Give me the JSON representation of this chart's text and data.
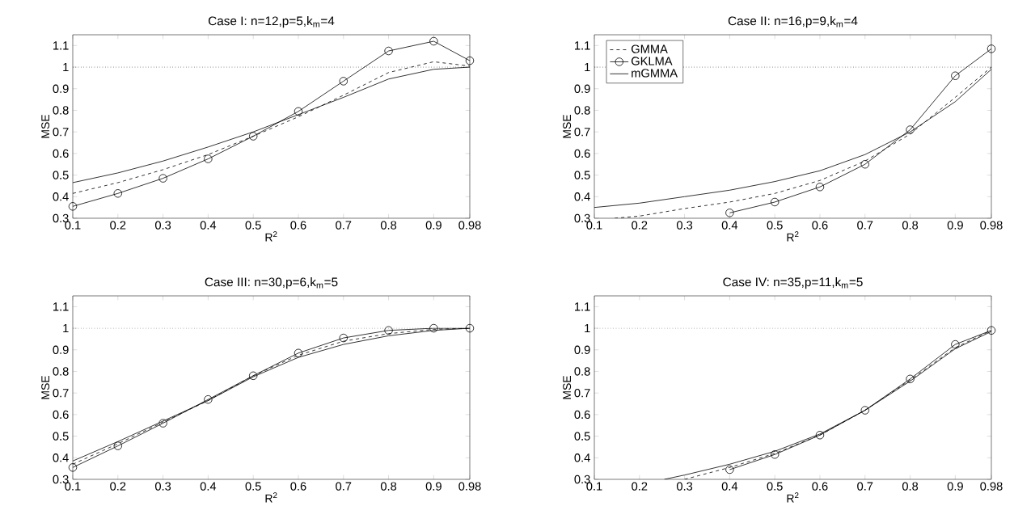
{
  "chart_data": [
    {
      "type": "line",
      "title": "Case I: n=12,p=5,k$_{m}$=4",
      "xlabel": "R$^{2}$",
      "ylabel": "MSE",
      "xlim": [
        0.1,
        0.98
      ],
      "ylim": [
        0.3,
        1.15
      ],
      "xticks": [
        0.1,
        0.2,
        0.3,
        0.4,
        0.5,
        0.6,
        0.7,
        0.8,
        0.9,
        0.98
      ],
      "yticks": [
        0.3,
        0.4,
        0.5,
        0.6,
        0.7,
        0.8,
        0.9,
        1,
        1.1
      ],
      "grid": false,
      "legend": false,
      "ref_lines": [
        {
          "axis": "y",
          "value": 1,
          "color": "#000000",
          "line_style": "dotted"
        }
      ],
      "series": [
        {
          "color": "#000000",
          "line_style": "dashed",
          "marker": "none",
          "x": [
            0.1,
            0.2,
            0.3,
            0.4,
            0.5,
            0.6,
            0.7,
            0.8,
            0.9,
            0.98
          ],
          "values": [
            0.415,
            0.465,
            0.525,
            0.595,
            0.68,
            0.77,
            0.87,
            0.975,
            1.025,
            1.005
          ]
        },
        {
          "color": "#000000",
          "line_style": "solid",
          "marker": "circle",
          "x": [
            0.1,
            0.2,
            0.3,
            0.4,
            0.5,
            0.6,
            0.7,
            0.8,
            0.9,
            0.98
          ],
          "values": [
            0.355,
            0.415,
            0.485,
            0.575,
            0.68,
            0.795,
            0.935,
            1.075,
            1.12,
            1.03
          ]
        },
        {
          "color": "#000000",
          "line_style": "solid",
          "marker": "none",
          "x": [
            0.1,
            0.2,
            0.3,
            0.4,
            0.5,
            0.6,
            0.7,
            0.8,
            0.9,
            0.98
          ],
          "values": [
            0.465,
            0.51,
            0.565,
            0.63,
            0.7,
            0.78,
            0.86,
            0.945,
            0.99,
            1.0
          ]
        }
      ]
    },
    {
      "type": "line",
      "title": "Case II: n=16,p=9,k$_{m}$=4",
      "xlabel": "R$^{2}$",
      "ylabel": "MSE",
      "xlim": [
        0.1,
        0.98
      ],
      "ylim": [
        0.3,
        1.15
      ],
      "xticks": [
        0.1,
        0.2,
        0.3,
        0.4,
        0.5,
        0.6,
        0.7,
        0.8,
        0.9,
        0.98
      ],
      "yticks": [
        0.3,
        0.4,
        0.5,
        0.6,
        0.7,
        0.8,
        0.9,
        1,
        1.1
      ],
      "grid": false,
      "legend": "top left",
      "ref_lines": [
        {
          "axis": "y",
          "value": 1,
          "color": "#000000",
          "line_style": "dotted"
        }
      ],
      "series": [
        {
          "name": "GMMA",
          "color": "#000000",
          "line_style": "dashed",
          "marker": "none",
          "x": [
            0.145,
            0.2,
            0.3,
            0.4,
            0.5,
            0.6,
            0.7,
            0.8,
            0.9,
            0.98
          ],
          "values": [
            0.3,
            0.31,
            0.345,
            0.375,
            0.415,
            0.475,
            0.565,
            0.69,
            0.86,
            1.0
          ]
        },
        {
          "name": "GKLMA",
          "color": "#000000",
          "line_style": "solid",
          "marker": "circle",
          "x": [
            0.4,
            0.5,
            0.6,
            0.7,
            0.8,
            0.9,
            0.98
          ],
          "values": [
            0.325,
            0.375,
            0.445,
            0.55,
            0.71,
            0.96,
            1.085
          ]
        },
        {
          "name": "mGMMA",
          "color": "#000000",
          "line_style": "solid",
          "marker": "none",
          "x": [
            0.1,
            0.2,
            0.3,
            0.4,
            0.5,
            0.6,
            0.7,
            0.8,
            0.9,
            0.98
          ],
          "values": [
            0.35,
            0.37,
            0.4,
            0.43,
            0.47,
            0.52,
            0.595,
            0.7,
            0.84,
            0.99
          ]
        }
      ]
    },
    {
      "type": "line",
      "title": "Case III: n=30,p=6,k$_{m}$=5",
      "xlabel": "R$^{2}$",
      "ylabel": "MSE",
      "xlim": [
        0.1,
        0.98
      ],
      "ylim": [
        0.3,
        1.15
      ],
      "xticks": [
        0.1,
        0.2,
        0.3,
        0.4,
        0.5,
        0.6,
        0.7,
        0.8,
        0.9,
        0.98
      ],
      "yticks": [
        0.3,
        0.4,
        0.5,
        0.6,
        0.7,
        0.8,
        0.9,
        1,
        1.1
      ],
      "grid": false,
      "legend": false,
      "ref_lines": [
        {
          "axis": "y",
          "value": 1,
          "color": "#000000",
          "line_style": "dotted"
        }
      ],
      "series": [
        {
          "color": "#000000",
          "line_style": "dashed",
          "marker": "none",
          "x": [
            0.1,
            0.2,
            0.3,
            0.4,
            0.5,
            0.6,
            0.7,
            0.8,
            0.9,
            0.98
          ],
          "values": [
            0.37,
            0.465,
            0.565,
            0.665,
            0.78,
            0.875,
            0.94,
            0.975,
            0.995,
            1.0
          ]
        },
        {
          "color": "#000000",
          "line_style": "solid",
          "marker": "circle",
          "x": [
            0.1,
            0.2,
            0.3,
            0.4,
            0.5,
            0.6,
            0.7,
            0.8,
            0.9,
            0.98
          ],
          "values": [
            0.355,
            0.455,
            0.56,
            0.67,
            0.78,
            0.885,
            0.955,
            0.99,
            1.0,
            1.0
          ]
        },
        {
          "color": "#000000",
          "line_style": "solid",
          "marker": "none",
          "x": [
            0.1,
            0.2,
            0.3,
            0.4,
            0.5,
            0.6,
            0.7,
            0.8,
            0.9,
            0.98
          ],
          "values": [
            0.385,
            0.475,
            0.57,
            0.665,
            0.775,
            0.865,
            0.925,
            0.965,
            0.99,
            1.0
          ]
        }
      ]
    },
    {
      "type": "line",
      "title": "Case IV: n=35,p=11,k$_{m}$=5",
      "xlabel": "R$^{2}$",
      "ylabel": "MSE",
      "xlim": [
        0.1,
        0.98
      ],
      "ylim": [
        0.3,
        1.15
      ],
      "xticks": [
        0.1,
        0.2,
        0.3,
        0.4,
        0.5,
        0.6,
        0.7,
        0.8,
        0.9,
        0.98
      ],
      "yticks": [
        0.3,
        0.4,
        0.5,
        0.6,
        0.7,
        0.8,
        0.9,
        1,
        1.1
      ],
      "grid": false,
      "legend": false,
      "ref_lines": [
        {
          "axis": "y",
          "value": 1,
          "color": "#000000",
          "line_style": "dotted"
        }
      ],
      "series": [
        {
          "color": "#000000",
          "line_style": "dashed",
          "marker": "none",
          "x": [
            0.3,
            0.4,
            0.5,
            0.6,
            0.7,
            0.8,
            0.9,
            0.98
          ],
          "values": [
            0.3,
            0.355,
            0.42,
            0.505,
            0.62,
            0.76,
            0.91,
            0.99
          ]
        },
        {
          "color": "#000000",
          "line_style": "solid",
          "marker": "circle",
          "x": [
            0.4,
            0.5,
            0.6,
            0.7,
            0.8,
            0.9,
            0.98
          ],
          "values": [
            0.345,
            0.415,
            0.505,
            0.62,
            0.765,
            0.925,
            0.99
          ]
        },
        {
          "color": "#000000",
          "line_style": "solid",
          "marker": "none",
          "x": [
            0.255,
            0.3,
            0.4,
            0.5,
            0.6,
            0.7,
            0.8,
            0.9,
            0.98
          ],
          "values": [
            0.3,
            0.32,
            0.37,
            0.43,
            0.51,
            0.62,
            0.755,
            0.905,
            0.985
          ]
        }
      ]
    }
  ]
}
